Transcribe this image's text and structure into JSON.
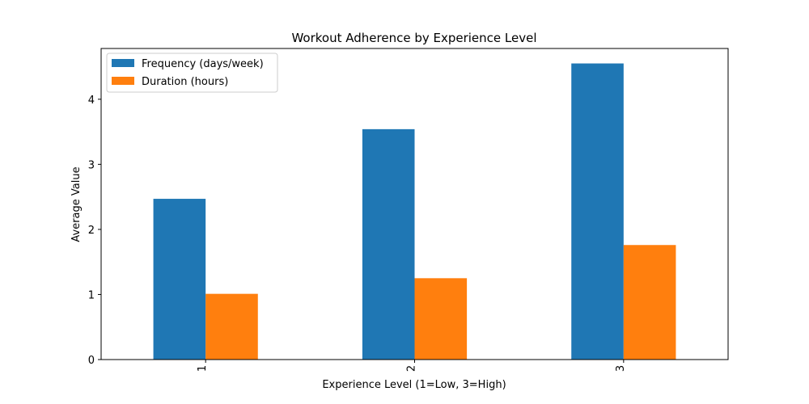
{
  "chart_data": {
    "type": "bar",
    "title": "Workout Adherence by Experience Level",
    "xlabel": "Experience Level (1=Low, 3=High)",
    "ylabel": "Average Value",
    "categories": [
      "1",
      "2",
      "3"
    ],
    "series": [
      {
        "name": "Frequency (days/week)",
        "color": "#1f77b4",
        "values": [
          2.47,
          3.54,
          4.55
        ]
      },
      {
        "name": "Duration (hours)",
        "color": "#ff7f0e",
        "values": [
          1.01,
          1.25,
          1.76
        ]
      }
    ],
    "ylim": [
      0,
      4.78
    ],
    "yticks": [
      0,
      1,
      2,
      3,
      4
    ],
    "x_tick_rotation": "vertical",
    "grid": false,
    "legend": "top-left"
  }
}
